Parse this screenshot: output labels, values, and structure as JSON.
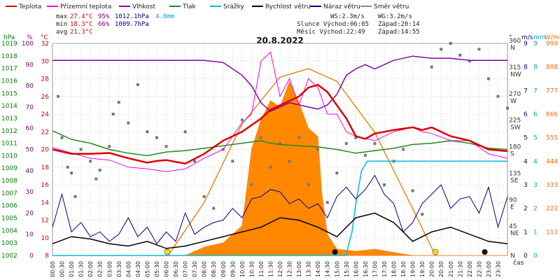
{
  "chart_data": {
    "type": "line",
    "title": "20.8.2022",
    "xlabel": "čas",
    "x_ticks": [
      "00:00",
      "00:30",
      "01:00",
      "01:30",
      "02:00",
      "02:30",
      "03:00",
      "03:30",
      "04:00",
      "04:30",
      "05:00",
      "05:30",
      "06:00",
      "06:30",
      "07:00",
      "07:30",
      "08:00",
      "08:30",
      "09:00",
      "09:30",
      "10:00",
      "10:30",
      "11:00",
      "11:30",
      "12:00",
      "12:30",
      "13:00",
      "13:30",
      "14:00",
      "14:30",
      "15:00",
      "15:30",
      "16:00",
      "16:30",
      "17:00",
      "17:30",
      "18:00",
      "18:30",
      "19:00",
      "19:30",
      "20:00",
      "20:30",
      "21:00",
      "21:30",
      "22:00",
      "22:30",
      "23:00",
      "23:30"
    ],
    "axes": {
      "hpa": {
        "label": "hPa",
        "color": "#008000",
        "min": 1002,
        "max": 1019,
        "ticks": [
          1002,
          1003,
          1004,
          1005,
          1006,
          1007,
          1008,
          1009,
          1010,
          1011,
          1012,
          1013,
          1014,
          1015,
          1016,
          1017,
          1018,
          1019
        ]
      },
      "pct": {
        "label": "%",
        "color": "#800080",
        "min": 0,
        "max": 100,
        "ticks": [
          0,
          10,
          20,
          30,
          40,
          50,
          60,
          70,
          80,
          90,
          100
        ]
      },
      "temp": {
        "label": "°C",
        "color": "#cc0000",
        "min": 8,
        "max": 32,
        "ticks": [
          8,
          10,
          12,
          14,
          16,
          18,
          20,
          22,
          24,
          26,
          28,
          30,
          32
        ]
      },
      "dir": {
        "label": "°",
        "color": "#333333",
        "ticks": [
          {
            "v": 0,
            "t": "N"
          },
          {
            "v": 45,
            "t": "45\nNE"
          },
          {
            "v": 90,
            "t": "90\nE"
          },
          {
            "v": 135,
            "t": "135\nSE"
          },
          {
            "v": 180,
            "t": "180\nS"
          },
          {
            "v": 225,
            "t": "225\nSW"
          },
          {
            "v": 270,
            "t": "270\nW"
          },
          {
            "v": 315,
            "t": "315\nNW"
          },
          {
            "v": 360,
            "t": "360\nN"
          }
        ]
      },
      "ms": {
        "label": "m/s",
        "color": "#000080",
        "min": 0,
        "max": 9,
        "ticks": [
          0,
          1,
          2,
          3,
          4,
          5,
          6,
          7,
          8,
          9
        ]
      },
      "mm": {
        "label": "mm",
        "color": "#00aacc",
        "min": 0,
        "max": 9,
        "ticks": [
          0,
          1,
          2,
          3,
          4,
          5,
          6,
          7,
          8,
          9
        ]
      },
      "wm2": {
        "label": "W/m2",
        "color": "#ff6600",
        "ticks": [
          111,
          222,
          333,
          444,
          555,
          666,
          777,
          888,
          999
        ]
      }
    },
    "legend": [
      {
        "name": "Teplota",
        "color": "#dd0000"
      },
      {
        "name": "Přízemní teplota",
        "color": "#ee00ee"
      },
      {
        "name": "Vlhkost",
        "color": "#8800aa"
      },
      {
        "name": "Tlak",
        "color": "#228822"
      },
      {
        "name": "Srážky",
        "color": "#00bbdd"
      },
      {
        "name": "Rychlost větru",
        "color": "#000000"
      },
      {
        "name": "Náraz větru",
        "color": "#000088"
      },
      {
        "name": "Směr větru",
        "color": "#888888"
      }
    ],
    "stats": {
      "max_label": "max",
      "max_temp": "27.4°C",
      "max_hum": "95%",
      "max_press": "1012.1hPa",
      "rain": "4.0mm",
      "min_label": "min",
      "min_temp": "18.3°C",
      "min_hum": "66%",
      "min_press": "1009.7hPa",
      "avg_label": "avg",
      "avg_temp": "21.3°C",
      "ws": "WS:2.3m/s",
      "wg": "WG:3.2m/s",
      "sun_rise": "Slunce Východ:06:05",
      "sun_set": "Západ:20:14",
      "moon_rise": "Měsíc  Východ:22:49",
      "moon_set": "Západ:14:55"
    },
    "series": {
      "temperature": [
        [
          0,
          20
        ],
        [
          1,
          19.5
        ],
        [
          2,
          19.5
        ],
        [
          3,
          19.6
        ],
        [
          4,
          19
        ],
        [
          5,
          18.5
        ],
        [
          5.5,
          18.7
        ],
        [
          6,
          18.8
        ],
        [
          7,
          18.4
        ],
        [
          8,
          19.5
        ],
        [
          9,
          21
        ],
        [
          10,
          22
        ],
        [
          11,
          23.5
        ],
        [
          11.5,
          24.5
        ],
        [
          12,
          25
        ],
        [
          12.5,
          25.5
        ],
        [
          13,
          26
        ],
        [
          13.5,
          27
        ],
        [
          14,
          27.3
        ],
        [
          14.5,
          26.5
        ],
        [
          15,
          25
        ],
        [
          15.5,
          23.5
        ],
        [
          16,
          21.5
        ],
        [
          16.5,
          21.2
        ],
        [
          17,
          21.8
        ],
        [
          17.5,
          22
        ],
        [
          18,
          22.2
        ],
        [
          19,
          22.5
        ],
        [
          19.5,
          22.2
        ],
        [
          20,
          22.5
        ],
        [
          20.5,
          22
        ],
        [
          21,
          21.5
        ],
        [
          22,
          21
        ],
        [
          23,
          20
        ],
        [
          24,
          19.8
        ]
      ],
      "ground_temp": [
        [
          0,
          20.2
        ],
        [
          2,
          19
        ],
        [
          3,
          18.8
        ],
        [
          4,
          18
        ],
        [
          5,
          17.8
        ],
        [
          6,
          17.5
        ],
        [
          7,
          17.8
        ],
        [
          8,
          19
        ],
        [
          9,
          20
        ],
        [
          10,
          23
        ],
        [
          10.5,
          24
        ],
        [
          11,
          30
        ],
        [
          11.5,
          31
        ],
        [
          12,
          26
        ],
        [
          12.5,
          28
        ],
        [
          13,
          25
        ],
        [
          13.5,
          28
        ],
        [
          14,
          27
        ],
        [
          14.5,
          24
        ],
        [
          15,
          24
        ],
        [
          15.5,
          22
        ],
        [
          16,
          21.5
        ],
        [
          17,
          21
        ],
        [
          18,
          22
        ],
        [
          19,
          22.5
        ],
        [
          19.5,
          22
        ],
        [
          20,
          21.8
        ],
        [
          21,
          21
        ],
        [
          22,
          21
        ],
        [
          23,
          19.5
        ],
        [
          24,
          19
        ]
      ],
      "humidity": [
        [
          0,
          92
        ],
        [
          2,
          92
        ],
        [
          4,
          92
        ],
        [
          6,
          92
        ],
        [
          8,
          92
        ],
        [
          9,
          91
        ],
        [
          10,
          85
        ],
        [
          10.5,
          80
        ],
        [
          11,
          72
        ],
        [
          11.5,
          68
        ],
        [
          12,
          70
        ],
        [
          12.5,
          72
        ],
        [
          13,
          71
        ],
        [
          13.5,
          70
        ],
        [
          14,
          69
        ],
        [
          14.5,
          71
        ],
        [
          15,
          76
        ],
        [
          15.5,
          85
        ],
        [
          16,
          88
        ],
        [
          16.5,
          90
        ],
        [
          17,
          88
        ],
        [
          18,
          92
        ],
        [
          19,
          94
        ],
        [
          20,
          93
        ],
        [
          21,
          93
        ],
        [
          22,
          92
        ],
        [
          23,
          92
        ],
        [
          24,
          92
        ]
      ],
      "pressure": [
        [
          0,
          1012.0
        ],
        [
          1,
          1011.3
        ],
        [
          2,
          1011.0
        ],
        [
          3,
          1010.5
        ],
        [
          4,
          1010.2
        ],
        [
          5,
          1010.0
        ],
        [
          6,
          1010.3
        ],
        [
          7,
          1010.4
        ],
        [
          8,
          1010.6
        ],
        [
          9,
          1010.8
        ],
        [
          10,
          1011.0
        ],
        [
          10.5,
          1011.1
        ],
        [
          11,
          1011.2
        ],
        [
          11.5,
          1011.0
        ],
        [
          12,
          1010.9
        ],
        [
          13,
          1010.8
        ],
        [
          14,
          1010.7
        ],
        [
          15,
          1010.5
        ],
        [
          16,
          1010.2
        ],
        [
          17,
          1010.4
        ],
        [
          18,
          1010.6
        ],
        [
          19,
          1010.9
        ],
        [
          20,
          1011.0
        ],
        [
          21,
          1011.2
        ],
        [
          22,
          1011.0
        ],
        [
          23,
          1010.6
        ],
        [
          24,
          1010.5
        ]
      ],
      "rain_mm": [
        [
          0,
          0
        ],
        [
          15.5,
          0
        ],
        [
          15.6,
          0.4
        ],
        [
          15.8,
          1.0
        ],
        [
          16,
          2.2
        ],
        [
          16.3,
          3.6
        ],
        [
          16.6,
          4.0
        ],
        [
          20,
          4.0
        ],
        [
          20.1,
          4.0
        ],
        [
          24,
          4.0
        ]
      ],
      "wind_speed": [
        [
          0,
          0.5
        ],
        [
          1,
          0.8
        ],
        [
          2,
          0.7
        ],
        [
          3,
          0.5
        ],
        [
          4,
          0.4
        ],
        [
          5,
          0.6
        ],
        [
          6,
          0.3
        ],
        [
          7,
          0.4
        ],
        [
          8,
          0.6
        ],
        [
          9,
          0.8
        ],
        [
          10,
          1.0
        ],
        [
          11,
          1.2
        ],
        [
          12,
          1.6
        ],
        [
          13,
          1.5
        ],
        [
          14,
          1.2
        ],
        [
          15,
          0.8
        ],
        [
          16,
          1.6
        ],
        [
          17,
          1.8
        ],
        [
          18,
          1.4
        ],
        [
          19,
          0.6
        ],
        [
          20,
          1.0
        ],
        [
          21,
          1.2
        ],
        [
          22,
          0.9
        ],
        [
          23,
          0.6
        ],
        [
          24,
          0.5
        ]
      ],
      "wind_gust": [
        [
          0,
          1.2
        ],
        [
          0.5,
          2.6
        ],
        [
          1,
          1.0
        ],
        [
          1.5,
          1.4
        ],
        [
          2,
          0.8
        ],
        [
          2.5,
          1.0
        ],
        [
          3,
          0.6
        ],
        [
          3.5,
          0.9
        ],
        [
          4,
          1.6
        ],
        [
          4.5,
          0.8
        ],
        [
          5,
          1.2
        ],
        [
          5.5,
          0.5
        ],
        [
          6,
          1.0
        ],
        [
          6.5,
          0.6
        ],
        [
          7,
          1.8
        ],
        [
          7.5,
          0.9
        ],
        [
          8,
          1.2
        ],
        [
          8.5,
          1.4
        ],
        [
          9,
          1.5
        ],
        [
          9.5,
          2.0
        ],
        [
          10,
          1.6
        ],
        [
          10.5,
          2.4
        ],
        [
          11,
          2.5
        ],
        [
          11.5,
          2.8
        ],
        [
          12,
          2.7
        ],
        [
          12.5,
          2.2
        ],
        [
          13,
          2.4
        ],
        [
          13.5,
          2.0
        ],
        [
          14,
          2.2
        ],
        [
          14.5,
          1.6
        ],
        [
          15,
          2.5
        ],
        [
          15.5,
          2.9
        ],
        [
          16,
          2.4
        ],
        [
          16.5,
          2.8
        ],
        [
          17,
          3.4
        ],
        [
          17.5,
          2.6
        ],
        [
          18,
          2.2
        ],
        [
          18.5,
          1.0
        ],
        [
          19,
          1.4
        ],
        [
          19.5,
          2.2
        ],
        [
          20,
          2.6
        ],
        [
          20.5,
          3.0
        ],
        [
          21,
          2.0
        ],
        [
          21.5,
          2.4
        ],
        [
          22,
          2.5
        ],
        [
          22.5,
          1.8
        ],
        [
          23,
          2.9
        ],
        [
          23.5,
          1.2
        ],
        [
          24,
          2.5
        ]
      ],
      "solar_w": [
        [
          0,
          0
        ],
        [
          7,
          0
        ],
        [
          8,
          40
        ],
        [
          9,
          60
        ],
        [
          10,
          140
        ],
        [
          10.5,
          500
        ],
        [
          11,
          640
        ],
        [
          11.5,
          730
        ],
        [
          12,
          700
        ],
        [
          12.5,
          820
        ],
        [
          13,
          720
        ],
        [
          13.5,
          600
        ],
        [
          14,
          560
        ],
        [
          14.2,
          300
        ],
        [
          14.5,
          100
        ],
        [
          15,
          30
        ],
        [
          16,
          20
        ],
        [
          17,
          30
        ],
        [
          18,
          15
        ],
        [
          19,
          0
        ],
        [
          24,
          0
        ]
      ],
      "solar_theoretical": [
        [
          6.1,
          0
        ],
        [
          8,
          250
        ],
        [
          10,
          620
        ],
        [
          12,
          840
        ],
        [
          13.5,
          880
        ],
        [
          15,
          820
        ],
        [
          17,
          580
        ],
        [
          19,
          220
        ],
        [
          20.2,
          0
        ]
      ],
      "wind_dir": [
        [
          0.3,
          270
        ],
        [
          0.5,
          200
        ],
        [
          0.8,
          150
        ],
        [
          1,
          140
        ],
        [
          1.2,
          100
        ],
        [
          1.5,
          180
        ],
        [
          2,
          160
        ],
        [
          2.3,
          130
        ],
        [
          2.5,
          145
        ],
        [
          3,
          185
        ],
        [
          3.2,
          240
        ],
        [
          3.5,
          260
        ],
        [
          4,
          225
        ],
        [
          4.5,
          290
        ],
        [
          5,
          210
        ],
        [
          5.5,
          200
        ],
        [
          6,
          185
        ],
        [
          7,
          210
        ],
        [
          7.5,
          160
        ],
        [
          8,
          100
        ],
        [
          8.5,
          80
        ],
        [
          9,
          180
        ],
        [
          9.5,
          160
        ],
        [
          10,
          230
        ],
        [
          10.5,
          120
        ],
        [
          11,
          200
        ],
        [
          11.5,
          150
        ],
        [
          12,
          190
        ],
        [
          12.5,
          160
        ],
        [
          13,
          200
        ],
        [
          13.5,
          120
        ],
        [
          14,
          180
        ],
        [
          14.5,
          90
        ],
        [
          15,
          140
        ],
        [
          15.5,
          190
        ],
        [
          16,
          200
        ],
        [
          16.5,
          170
        ],
        [
          17,
          190
        ],
        [
          17.5,
          120
        ],
        [
          18,
          160
        ],
        [
          18.5,
          180
        ],
        [
          19,
          110
        ],
        [
          19.5,
          70
        ],
        [
          20,
          320
        ],
        [
          20.5,
          350
        ],
        [
          21,
          360
        ],
        [
          21.5,
          340
        ],
        [
          22,
          330
        ],
        [
          22.5,
          350
        ],
        [
          23,
          300
        ],
        [
          23.5,
          270
        ],
        [
          24,
          250
        ]
      ]
    },
    "markers": {
      "sun": [
        {
          "x": 6.05,
          "color": "#ffdd00"
        },
        {
          "x": 20.2,
          "color": "#ffdd00"
        }
      ],
      "moon": [
        {
          "x": 14.9,
          "color": "#111111"
        },
        {
          "x": 22.8,
          "color": "#111111"
        }
      ]
    }
  }
}
